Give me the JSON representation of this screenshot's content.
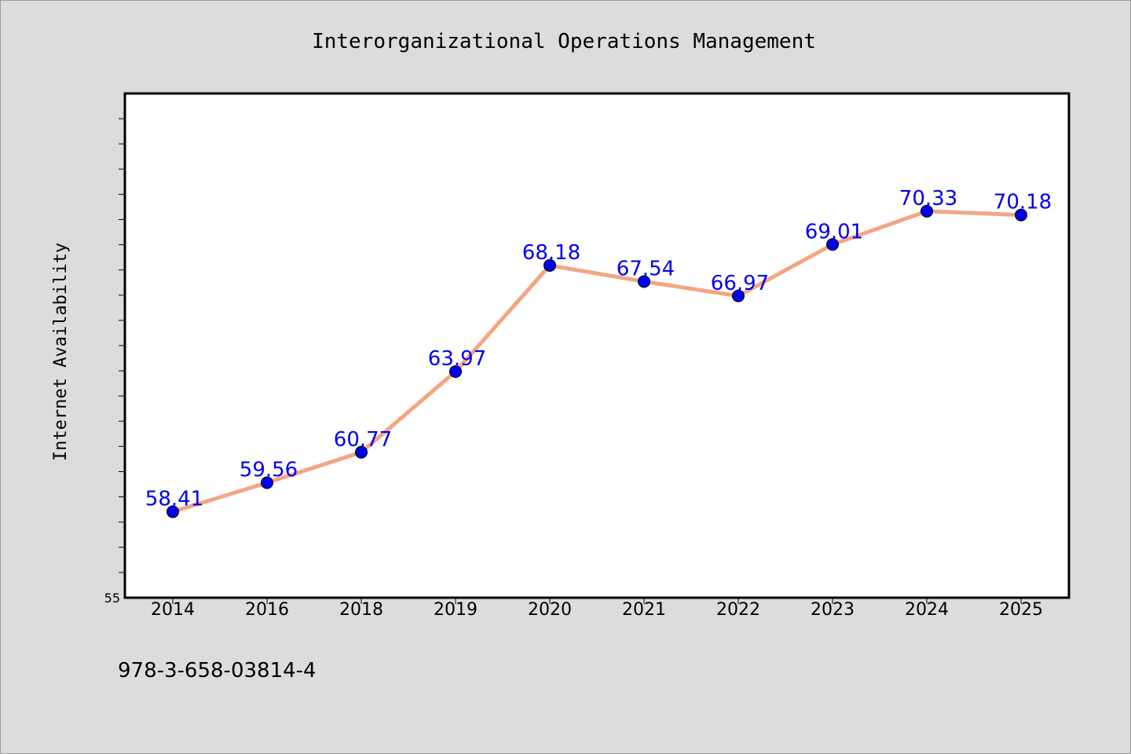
{
  "chart_data": {
    "type": "line",
    "title": "Interorganizational Operations Management",
    "ylabel": "Internet Availability",
    "xlabel": "",
    "categories": [
      "2014",
      "2016",
      "2018",
      "2019",
      "2020",
      "2021",
      "2022",
      "2023",
      "2024",
      "2025"
    ],
    "series": [
      {
        "values": [
          58.41,
          59.56,
          60.77,
          63.97,
          68.18,
          67.54,
          66.97,
          69.01,
          70.33,
          70.18
        ]
      }
    ],
    "ylim": [
      55,
      75
    ],
    "ytick_labels": [
      "55"
    ],
    "data_labels": [
      "58.41",
      "59.56",
      "60.77",
      "63.97",
      "68.18",
      "67.54",
      "66.97",
      "69.01",
      "70.33",
      "70.18"
    ],
    "grid": false,
    "line_color": "#f4a582",
    "marker_color": "#0000ee",
    "label_color": "#0000ee"
  },
  "footnote": "978-3-658-03814-4"
}
